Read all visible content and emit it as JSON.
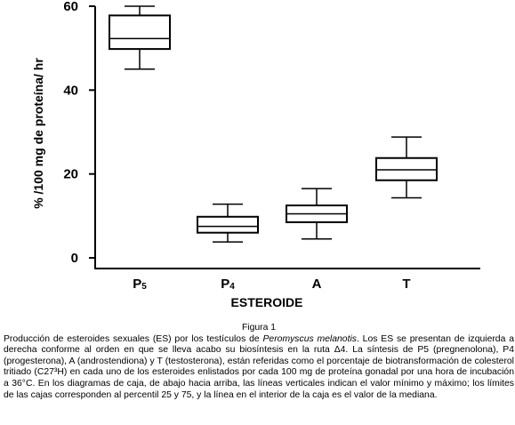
{
  "chart_data": {
    "type": "boxplot",
    "categories": [
      "P5",
      "P4",
      "A",
      "T"
    ],
    "category_labels": [
      {
        "main": "P",
        "sub": "5"
      },
      {
        "main": "P",
        "sub": "4"
      },
      {
        "main": "A",
        "sub": ""
      },
      {
        "main": "T",
        "sub": ""
      }
    ],
    "boxes": [
      {
        "category": "P5",
        "min": 45,
        "q1": 49.8,
        "median": 52.3,
        "q3": 57.8,
        "max": 60
      },
      {
        "category": "P4",
        "min": 3.8,
        "q1": 6,
        "median": 7.5,
        "q3": 9.8,
        "max": 12.8
      },
      {
        "category": "A",
        "min": 4.5,
        "q1": 8.5,
        "median": 10.5,
        "q3": 12.5,
        "max": 16.5
      },
      {
        "category": "T",
        "min": 14.3,
        "q1": 18.5,
        "median": 21,
        "q3": 23.8,
        "max": 28.8
      }
    ],
    "xlabel": "ESTEROIDE",
    "ylabel": "% /100 mg de proteína/ hr",
    "ylim": [
      0,
      60
    ],
    "yticks": [
      0,
      20,
      40,
      60
    ],
    "grid": false,
    "legend": false
  },
  "caption": {
    "figure_title": "Figura 1",
    "text_before_species": "Producción de esteroides sexuales (ES) por los testículos de ",
    "species": "Peromyscus melanotis",
    "text_after_species": ". Los ES se presentan de izquierda a derecha conforme al orden en que se lleva acabo su biosíntesis en la ruta Δ4. La síntesis de P5 (pregnenolona), P4 (progesterona), A (androstendiona) y T (testosterona), están referidas como el porcentaje de biotransformación de colesterol tritiado (C27³H) en cada uno de los esteroides enlistados por cada 100 mg de proteína gonadal por una hora de incubación a 36°C. En los diagramas de caja, de abajo hacia arriba, las líneas verticales indican el valor mínimo y máximo; los límites de las cajas corresponden al percentil 25 y 75, y la línea en el interior de la caja es el valor de la mediana."
  }
}
